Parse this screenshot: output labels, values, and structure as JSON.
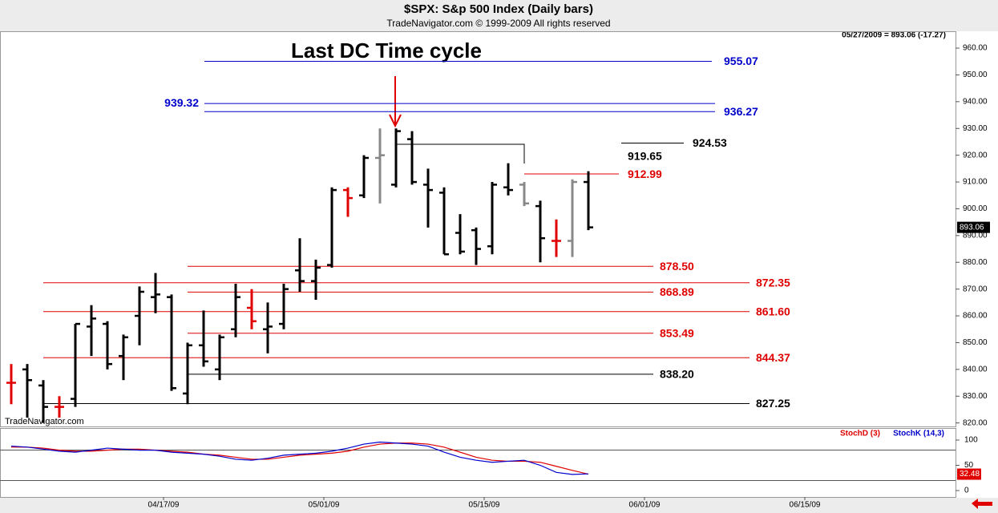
{
  "header": {
    "title": "$SPX:  S&p 500 Index  (Daily bars)",
    "subtitle": "TradeNavigator.com © 1999-2009 All rights reserved",
    "watermark": "TradeNavigator.com"
  },
  "chart_data": [
    {
      "type": "ohlc",
      "status": "05/27/2009 = 893.06 (-17.27)",
      "annotation": "Last DC Time cycle",
      "open": [
        835,
        840,
        834,
        826,
        829,
        856,
        857,
        845,
        860,
        867,
        867,
        831,
        849,
        840,
        855,
        863,
        855,
        857,
        877,
        873,
        879,
        907,
        905,
        919,
        909,
        926,
        909,
        906,
        891,
        892,
        886,
        908,
        909,
        901,
        888,
        888,
        910
      ],
      "high": [
        842,
        842,
        836,
        830,
        857,
        864,
        858,
        853,
        871,
        876,
        868,
        850,
        862,
        853,
        872,
        870,
        865,
        872,
        889,
        881,
        908,
        908,
        920,
        930,
        930,
        929,
        915,
        908,
        898,
        893,
        910,
        917,
        910,
        903,
        896,
        911,
        914
      ],
      "low": [
        827,
        822,
        820,
        822,
        826,
        845,
        840,
        836,
        849,
        861,
        832,
        827,
        841,
        836,
        852,
        855,
        846,
        855,
        869,
        866,
        878,
        897,
        904,
        902,
        908,
        909,
        893,
        883,
        883,
        879,
        883,
        905,
        901,
        880,
        882,
        882,
        892
      ],
      "close": [
        835,
        836,
        826,
        826,
        857,
        859,
        842,
        852,
        869,
        868,
        833,
        849,
        843,
        852,
        867,
        858,
        856,
        870,
        873,
        878,
        907,
        904,
        919,
        920,
        929,
        910,
        907,
        883,
        884,
        885,
        909,
        907,
        902,
        889,
        888,
        910,
        893.06
      ],
      "colors": [
        "#e00000",
        "#000000",
        "#000000",
        "#e00000",
        "#000000",
        "#000000",
        "#000000",
        "#000000",
        "#000000",
        "#000000",
        "#000000",
        "#000000",
        "#000000",
        "#000000",
        "#000000",
        "#e00000",
        "#000000",
        "#000000",
        "#000000",
        "#000000",
        "#000000",
        "#e00000",
        "#000000",
        "#888888",
        "#000000",
        "#000000",
        "#000000",
        "#000000",
        "#000000",
        "#000000",
        "#000000",
        "#000000",
        "#888888",
        "#000000",
        "#e00000",
        "#888888",
        "#000000"
      ],
      "levels": [
        {
          "value": 955.07,
          "color": "#0000cc"
        },
        {
          "value": 939.32,
          "color": "#0000cc"
        },
        {
          "value": 936.27,
          "color": "#0000cc"
        },
        {
          "value": 924.53,
          "color": "#000000"
        },
        {
          "value": 919.65,
          "color": "#000000"
        },
        {
          "value": 912.99,
          "color": "#e00000"
        },
        {
          "value": 878.5,
          "label": "878.50",
          "color": "#e00000"
        },
        {
          "value": 872.35,
          "color": "#e00000"
        },
        {
          "value": 868.89,
          "color": "#e00000"
        },
        {
          "value": 861.6,
          "label": "861.60",
          "color": "#e00000"
        },
        {
          "value": 853.49,
          "color": "#e00000"
        },
        {
          "value": 844.37,
          "color": "#e00000"
        },
        {
          "value": 838.2,
          "label": "838.20",
          "color": "#000000"
        },
        {
          "value": 827.25,
          "color": "#000000"
        }
      ],
      "ylim": [
        819,
        966
      ],
      "yticks": [
        {
          "value": 820,
          "label": "820.00"
        },
        {
          "value": 830,
          "label": "830.00"
        },
        {
          "value": 840,
          "label": "840.00"
        },
        {
          "value": 850,
          "label": "850.00"
        },
        {
          "value": 860,
          "label": "860.00"
        },
        {
          "value": 870,
          "label": "870.00"
        },
        {
          "value": 880,
          "label": "880.00"
        },
        {
          "value": 890,
          "label": "890.00"
        },
        {
          "value": 900,
          "label": "900.00"
        },
        {
          "value": 910,
          "label": "910.00"
        },
        {
          "value": 920,
          "label": "920.00"
        },
        {
          "value": 930,
          "label": "930.00"
        },
        {
          "value": 940,
          "label": "940.00"
        },
        {
          "value": 950,
          "label": "950.00"
        },
        {
          "value": 960,
          "label": "960.00"
        }
      ],
      "xlim": [
        -0.7,
        58.9
      ],
      "xticks": [
        {
          "value": 9.5,
          "label": "04/17/09"
        },
        {
          "value": 19.5,
          "label": "05/01/09"
        },
        {
          "value": 29.5,
          "label": "05/15/09"
        },
        {
          "value": 39.5,
          "label": "06/01/09"
        },
        {
          "value": 49.5,
          "label": "06/15/09"
        }
      ]
    },
    {
      "type": "line",
      "series": [
        {
          "name": "StochD (3)",
          "color": "#e00000",
          "values": [
            86,
            86,
            84,
            80,
            78,
            78,
            80,
            82,
            82,
            80,
            78,
            76,
            72,
            70,
            66,
            62,
            62,
            66,
            70,
            72,
            74,
            78,
            86,
            92,
            94,
            94,
            92,
            86,
            76,
            66,
            60,
            58,
            58,
            56,
            48,
            40,
            32.48
          ]
        },
        {
          "name": "StochK (14,3)",
          "color": "#0000cc",
          "values": [
            88,
            86,
            82,
            78,
            76,
            80,
            84,
            82,
            80,
            80,
            76,
            74,
            72,
            68,
            62,
            60,
            64,
            70,
            72,
            74,
            78,
            84,
            92,
            96,
            94,
            92,
            88,
            76,
            66,
            60,
            56,
            58,
            60,
            50,
            36,
            32,
            33
          ]
        }
      ],
      "ylim": [
        0,
        100
      ],
      "yticks": [
        0,
        50,
        100
      ]
    }
  ]
}
